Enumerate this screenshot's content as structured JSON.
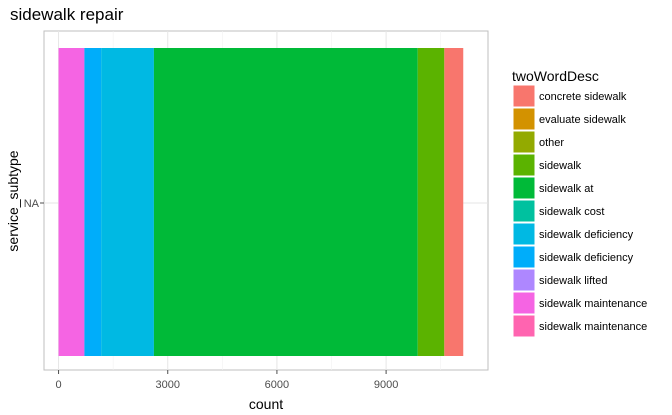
{
  "chart_data": {
    "type": "bar",
    "orientation": "horizontal",
    "stacked": true,
    "title": "sidewalk repair",
    "xlabel": "count",
    "ylabel": "service_subtype",
    "categories": [
      "NA"
    ],
    "xlim": [
      -400,
      11800
    ],
    "x_ticks": [
      0,
      3000,
      6000,
      9000
    ],
    "x_tick_labels": [
      "0",
      "3000",
      "6000",
      "9000"
    ],
    "grid": true,
    "legend_title": "twoWordDesc",
    "legend_position": "right",
    "series": [
      {
        "name": "concrete sidewalk",
        "color": "#F8766D",
        "values": [
          520
        ]
      },
      {
        "name": "evaluate sidewalk",
        "color": "#D39200",
        "values": [
          0
        ]
      },
      {
        "name": "other",
        "color": "#93AA00",
        "values": [
          0
        ]
      },
      {
        "name": "sidewalk",
        "color": "#5BB300",
        "values": [
          730
        ]
      },
      {
        "name": "sidewalk  at",
        "color": "#00BA38",
        "values": [
          7250
        ]
      },
      {
        "name": "sidewalk cost",
        "color": "#00C19F",
        "values": [
          0
        ]
      },
      {
        "name": "sidewalk deficiency",
        "color": "#00B9E3",
        "values": [
          1450
        ]
      },
      {
        "name": "sidewalk deficiency",
        "color": "#00ADFA",
        "values": [
          460
        ]
      },
      {
        "name": "sidewalk lifted",
        "color": "#AE87FF",
        "values": [
          0
        ]
      },
      {
        "name": "sidewalk maintenance",
        "color": "#F564E3",
        "values": [
          710
        ]
      },
      {
        "name": "sidewalk maintenance",
        "color": "#FF64B0",
        "values": [
          0
        ]
      }
    ]
  }
}
